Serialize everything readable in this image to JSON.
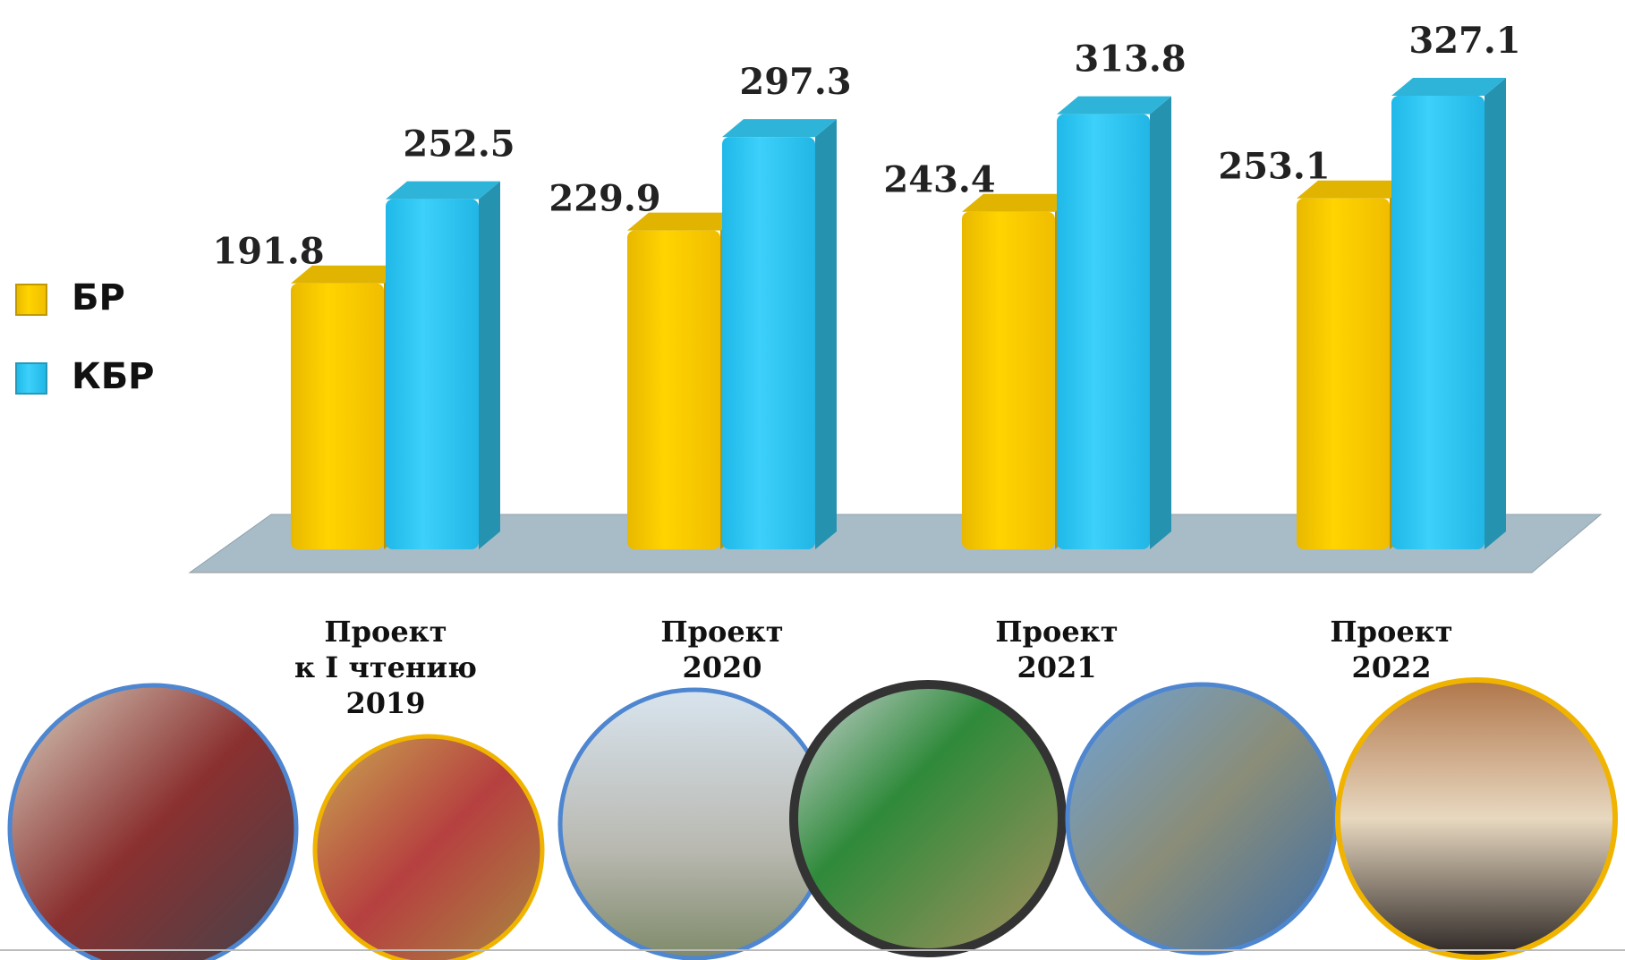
{
  "chart_data": {
    "type": "bar3d",
    "categories": [
      "Проект\nк I чтению\n2019",
      "Проект\n2020",
      "Проект\n2021",
      "Проект\n2022"
    ],
    "series": [
      {
        "name": "БР",
        "color": "#ffcc00",
        "values": [
          191.8,
          229.9,
          243.4,
          253.1
        ]
      },
      {
        "name": "КБР",
        "color": "#33ccf5",
        "values": [
          252.5,
          297.3,
          313.8,
          327.1
        ]
      }
    ],
    "legend": "left"
  }
}
